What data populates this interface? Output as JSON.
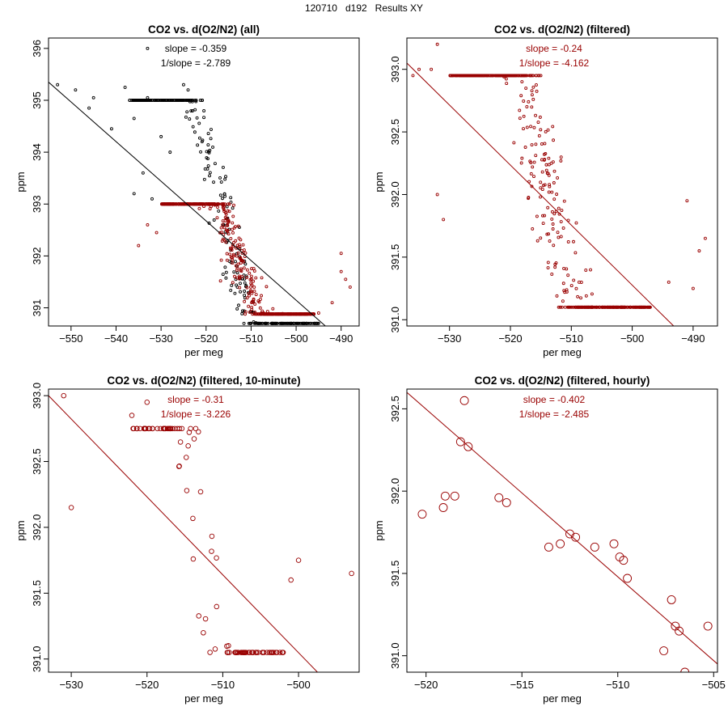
{
  "page": {
    "title": "120710   d192   Results XY"
  },
  "colors": {
    "all": "#000000",
    "filtered": "#990000",
    "axis": "#000000"
  },
  "chart_data": [
    {
      "type": "scatter",
      "title": "CO2 vs. d(O2/N2) (all)",
      "xlabel": "per meg",
      "ylabel": "ppm",
      "xlim": [
        -555,
        -486
      ],
      "ylim": [
        390.65,
        396.2
      ],
      "xticks": [
        -550,
        -540,
        -530,
        -520,
        -510,
        -500,
        -490
      ],
      "yticks": [
        391,
        392,
        393,
        394,
        395,
        396
      ],
      "tick_decimals": 0,
      "annotation": [
        "slope = -0.359",
        "1/slope = -2.789"
      ],
      "annotation_color": "#000000",
      "marker_radius": 1.5,
      "line": {
        "slope": -0.359,
        "x": [
          -555,
          -493.5
        ],
        "y": [
          395.35,
          390.65
        ],
        "color": "#000000"
      },
      "generated": {
        "series": [
          {
            "name": "all",
            "color": "#000000",
            "n": 380,
            "seed": 11,
            "xrange": [
              -537,
              -495
            ],
            "slope": -0.359,
            "ref": [
              -515,
              392.4
            ],
            "noise": 0.52,
            "ymin": 390.7,
            "ymax": 395.0
          },
          {
            "name": "filtered",
            "color": "#990000",
            "n": 620,
            "seed": 23,
            "xrange": [
              -530,
              -496
            ],
            "slope": -0.24,
            "ref": [
              -512,
              391.75
            ],
            "noise": 0.38,
            "ymin": 390.88,
            "ymax": 393.0
          }
        ],
        "extra": [
          {
            "name": "all",
            "color": "#000000",
            "points": [
              [
                -553,
                395.3
              ],
              [
                -549,
                395.2
              ],
              [
                -546,
                394.85
              ],
              [
                -545,
                395.05
              ],
              [
                -541,
                394.45
              ],
              [
                -538,
                395.25
              ],
              [
                -536,
                394.65
              ],
              [
                -533,
                395.05
              ],
              [
                -531,
                395.0
              ],
              [
                -525,
                395.3
              ],
              [
                -524,
                395.2
              ],
              [
                -533,
                396.0
              ],
              [
                -534,
                393.6
              ],
              [
                -536,
                393.2
              ],
              [
                -532,
                393.1
              ],
              [
                -530,
                394.3
              ],
              [
                -528,
                394.0
              ]
            ]
          },
          {
            "name": "filtered",
            "color": "#990000",
            "points": [
              [
                -490,
                392.05
              ],
              [
                -488,
                391.4
              ],
              [
                -489,
                391.55
              ],
              [
                -490,
                391.7
              ],
              [
                -492,
                391.1
              ],
              [
                -495,
                390.9
              ],
              [
                -531,
                392.45
              ],
              [
                -533,
                392.6
              ],
              [
                -535,
                392.2
              ]
            ]
          }
        ]
      }
    },
    {
      "type": "scatter",
      "title": "CO2 vs. d(O2/N2) (filtered)",
      "xlabel": "per meg",
      "ylabel": "ppm",
      "xlim": [
        -537,
        -486
      ],
      "ylim": [
        390.95,
        393.25
      ],
      "xticks": [
        -530,
        -520,
        -510,
        -500,
        -490
      ],
      "yticks": [
        391.0,
        391.5,
        392.0,
        392.5,
        393.0
      ],
      "tick_decimals": 1,
      "annotation": [
        "slope = -0.24",
        "1/slope = -4.162"
      ],
      "annotation_color": "#990000",
      "marker_radius": 1.5,
      "line": {
        "slope": -0.24,
        "x": [
          -537,
          -493.2
        ],
        "y": [
          393.05,
          390.95
        ],
        "color": "#990000"
      },
      "generated": {
        "series": [
          {
            "name": "filtered",
            "color": "#990000",
            "n": 640,
            "seed": 37,
            "xrange": [
              -530,
              -497
            ],
            "slope": -0.24,
            "ref": [
              -513,
              391.82
            ],
            "noise": 0.38,
            "ymin": 391.1,
            "ymax": 392.95
          }
        ],
        "extra": [
          {
            "name": "filtered",
            "color": "#990000",
            "points": [
              [
                -536,
                392.95
              ],
              [
                -535,
                393.0
              ],
              [
                -533,
                393.0
              ],
              [
                -532,
                393.2
              ],
              [
                -491,
                391.95
              ],
              [
                -490,
                391.25
              ],
              [
                -488,
                391.65
              ],
              [
                -489,
                391.55
              ],
              [
                -532,
                392.0
              ],
              [
                -531,
                391.8
              ],
              [
                -494,
                391.3
              ]
            ]
          }
        ]
      }
    },
    {
      "type": "scatter",
      "title": "CO2 vs. d(O2/N2) (filtered, 10-minute)",
      "xlabel": "per meg",
      "ylabel": "ppm",
      "xlim": [
        -533,
        -492
      ],
      "ylim": [
        390.9,
        393.05
      ],
      "xticks": [
        -530,
        -520,
        -510,
        -500
      ],
      "yticks": [
        391.0,
        391.5,
        392.0,
        392.5,
        393.0
      ],
      "tick_decimals": 1,
      "annotation": [
        "slope = -0.31",
        "1/slope = -3.226"
      ],
      "annotation_color": "#990000",
      "marker_radius": 2.8,
      "line": {
        "slope": -0.31,
        "x": [
          -533,
          -497.5
        ],
        "y": [
          393.0,
          390.9
        ],
        "color": "#990000"
      },
      "generated": {
        "series": [
          {
            "name": "filtered",
            "color": "#990000",
            "n": 105,
            "seed": 53,
            "xrange": [
              -522,
              -502
            ],
            "slope": -0.31,
            "ref": [
              -512,
              391.7
            ],
            "noise": 0.32,
            "ymin": 391.05,
            "ymax": 392.75
          }
        ],
        "extra": [
          {
            "name": "filtered",
            "color": "#990000",
            "points": [
              [
                -531,
                393.0
              ],
              [
                -530,
                392.15
              ],
              [
                -520,
                392.95
              ],
              [
                -522,
                392.85
              ],
              [
                -493,
                391.65
              ],
              [
                -500,
                391.75
              ],
              [
                -501,
                391.6
              ],
              [
                -516,
                392.75
              ]
            ]
          }
        ]
      }
    },
    {
      "type": "scatter",
      "title": "CO2 vs. d(O2/N2) (filtered, hourly)",
      "xlabel": "per meg",
      "ylabel": "ppm",
      "xlim": [
        -521,
        -504.8
      ],
      "ylim": [
        390.9,
        392.62
      ],
      "xticks": [
        -520,
        -515,
        -510,
        -505
      ],
      "yticks": [
        391.0,
        391.5,
        392.0,
        392.5
      ],
      "tick_decimals": 1,
      "annotation": [
        "slope = -0.402",
        "1/slope = -2.485"
      ],
      "annotation_color": "#990000",
      "marker_radius": 5,
      "line": {
        "slope": -0.402,
        "x": [
          -521,
          -504.8
        ],
        "y": [
          392.6,
          390.95
        ],
        "color": "#990000"
      },
      "points": [
        [
          -520.2,
          391.86
        ],
        [
          -519.1,
          391.9
        ],
        [
          -519.0,
          391.97
        ],
        [
          -518.5,
          391.97
        ],
        [
          -518.2,
          392.3
        ],
        [
          -518.0,
          392.55
        ],
        [
          -517.8,
          392.27
        ],
        [
          -516.2,
          391.96
        ],
        [
          -515.8,
          391.93
        ],
        [
          -513.6,
          391.66
        ],
        [
          -513.0,
          391.68
        ],
        [
          -512.5,
          391.74
        ],
        [
          -512.2,
          391.72
        ],
        [
          -511.2,
          391.66
        ],
        [
          -510.2,
          391.68
        ],
        [
          -509.9,
          391.6
        ],
        [
          -509.7,
          391.58
        ],
        [
          -509.5,
          391.47
        ],
        [
          -507.6,
          391.03
        ],
        [
          -507.2,
          391.34
        ],
        [
          -507.0,
          391.18
        ],
        [
          -506.8,
          391.15
        ],
        [
          -506.5,
          390.9
        ],
        [
          -505.3,
          391.18
        ]
      ],
      "point_color": "#990000"
    }
  ]
}
